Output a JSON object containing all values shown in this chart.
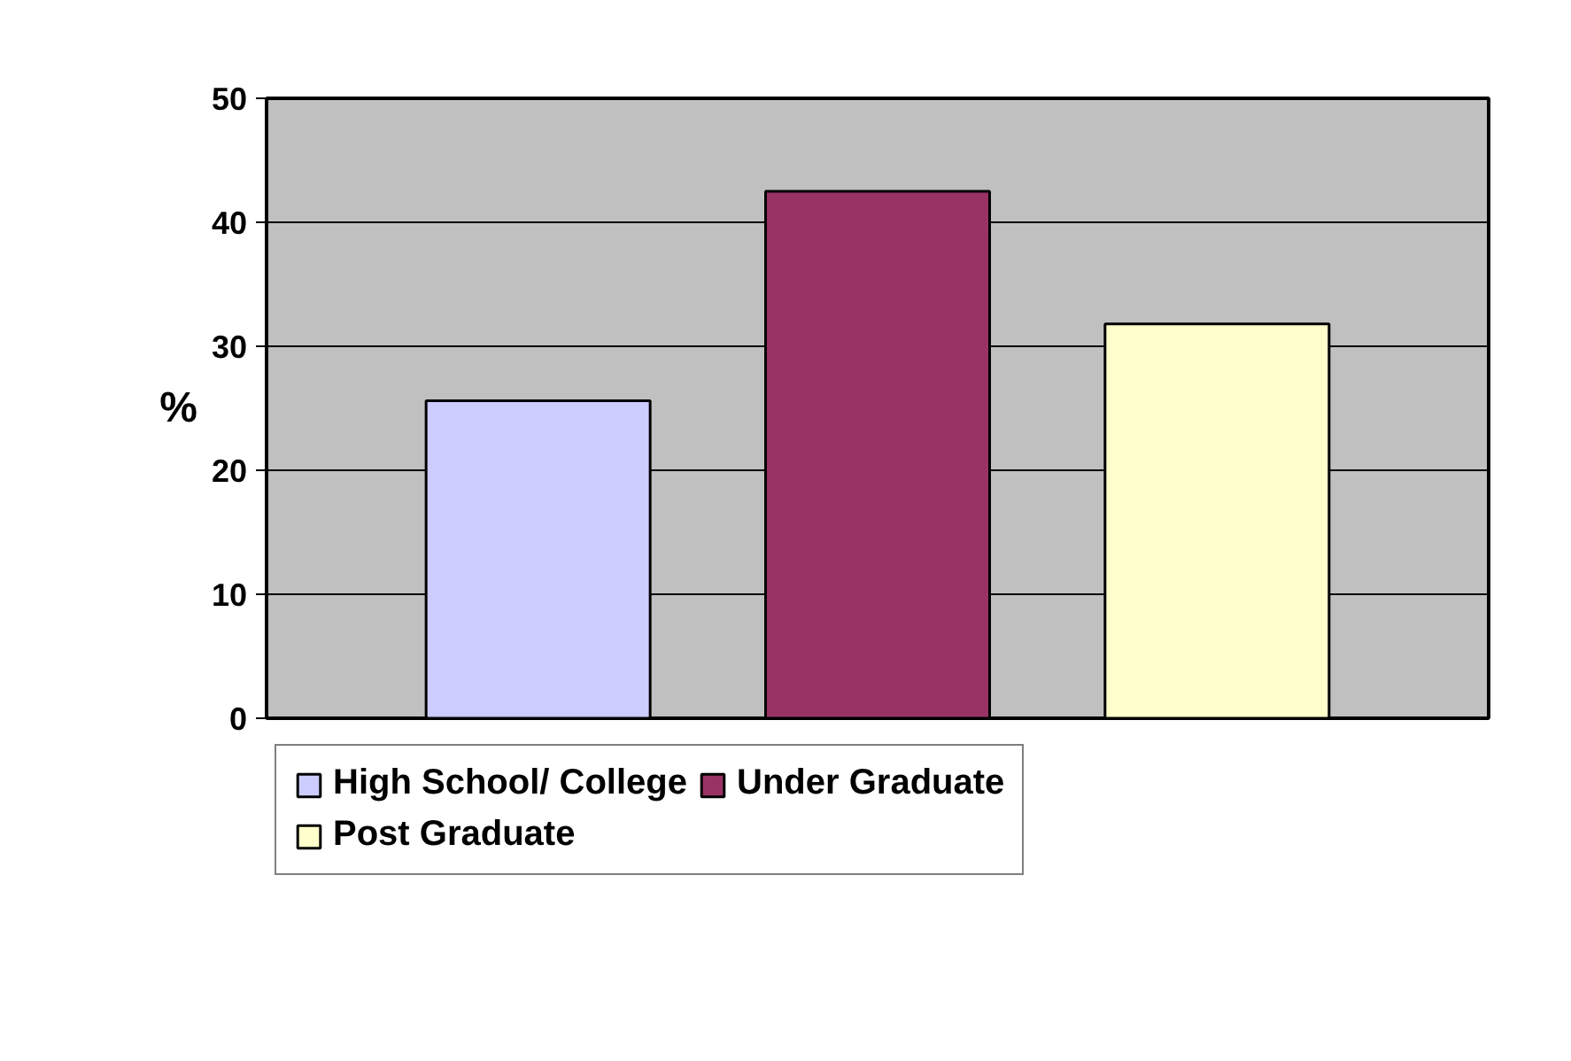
{
  "chart_data": {
    "type": "bar",
    "ylabel": "%",
    "categories": [
      null,
      null,
      null
    ],
    "series": [
      {
        "name": "High School/ College",
        "color": "#ccccff",
        "values": [
          25.6,
          null,
          null
        ]
      },
      {
        "name": "Under Graduate",
        "color": "#993366",
        "values": [
          null,
          42.5,
          null
        ]
      },
      {
        "name": "Post Graduate",
        "color": "#ffffcc",
        "values": [
          null,
          null,
          31.8
        ]
      }
    ],
    "ylim": [
      0,
      50
    ],
    "yticks": [
      0,
      10,
      20,
      30,
      40,
      50
    ],
    "grid": "y",
    "legend": "bottom"
  }
}
